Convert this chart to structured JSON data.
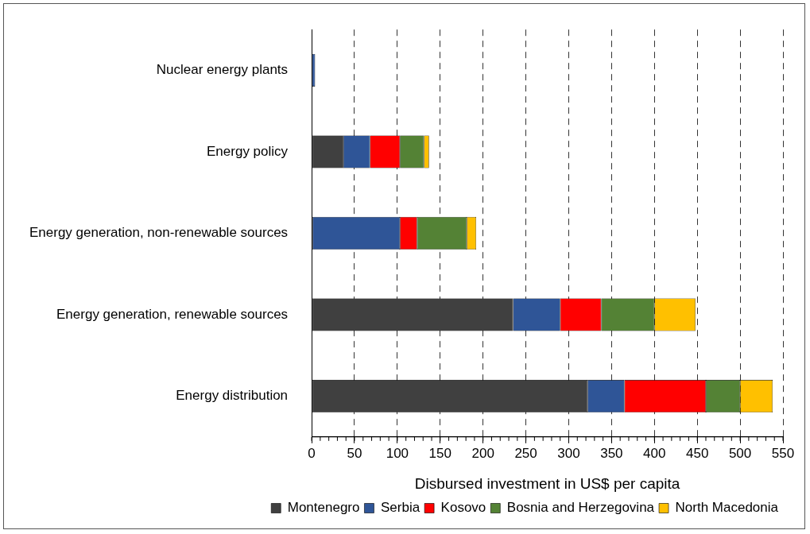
{
  "chart_data": {
    "type": "bar",
    "orientation": "horizontal",
    "stacked": true,
    "xlabel": "Disbursed investment in US$ per capita",
    "categories": [
      "Nuclear energy plants",
      "Energy policy",
      "Energy generation, non-renewable sources",
      "Energy generation, renewable sources",
      "Energy distribution"
    ],
    "series": [
      {
        "name": "Montenegro",
        "color": "#404040",
        "values": [
          0,
          37,
          1,
          235,
          322
        ]
      },
      {
        "name": "Serbia",
        "color": "#2f5597",
        "values": [
          4,
          31,
          102,
          55,
          43
        ]
      },
      {
        "name": "Kosovo",
        "color": "#ff0000",
        "values": [
          0,
          35,
          20,
          48,
          95
        ]
      },
      {
        "name": "Bosnia and Herzegovina",
        "color": "#548235",
        "values": [
          0,
          28,
          58,
          62,
          40
        ]
      },
      {
        "name": "North Macedonia",
        "color": "#ffc000",
        "values": [
          0,
          6,
          11,
          48,
          38
        ]
      }
    ],
    "xlim": [
      0,
      550
    ],
    "xticks": [
      0,
      50,
      100,
      150,
      200,
      250,
      300,
      350,
      400,
      450,
      500,
      550
    ],
    "grid": "x",
    "legend": "bottom"
  }
}
